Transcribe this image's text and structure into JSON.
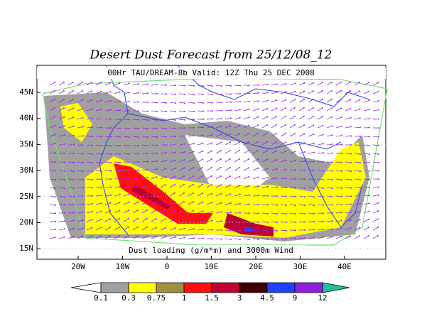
{
  "title": "Desert Dust Forecast from 25/12/08_12",
  "subtitle": "00Hr TAU/DREAM-8b Valid: 12Z Thu 25 DEC 2008",
  "caption": "Dust loading (g/m*m) and 3000m Wind",
  "lat_ticks": [
    "45N",
    "40N",
    "35N",
    "30N",
    "25N",
    "20N",
    "15N"
  ],
  "lon_ticks": [
    "20W",
    "10W",
    "0",
    "10E",
    "20E",
    "30E",
    "40E"
  ],
  "colorbar": {
    "levels": [
      "0.1",
      "0.3",
      "0.75",
      "1",
      "1.5",
      "3",
      "4.5",
      "9",
      "12"
    ],
    "colors": [
      "#ffffff",
      "#a0a0a0",
      "#ffff00",
      "#a09040",
      "#ff1010",
      "#c00030",
      "#400000",
      "#2040ff",
      "#9020e0",
      "#20c0a0"
    ]
  }
}
